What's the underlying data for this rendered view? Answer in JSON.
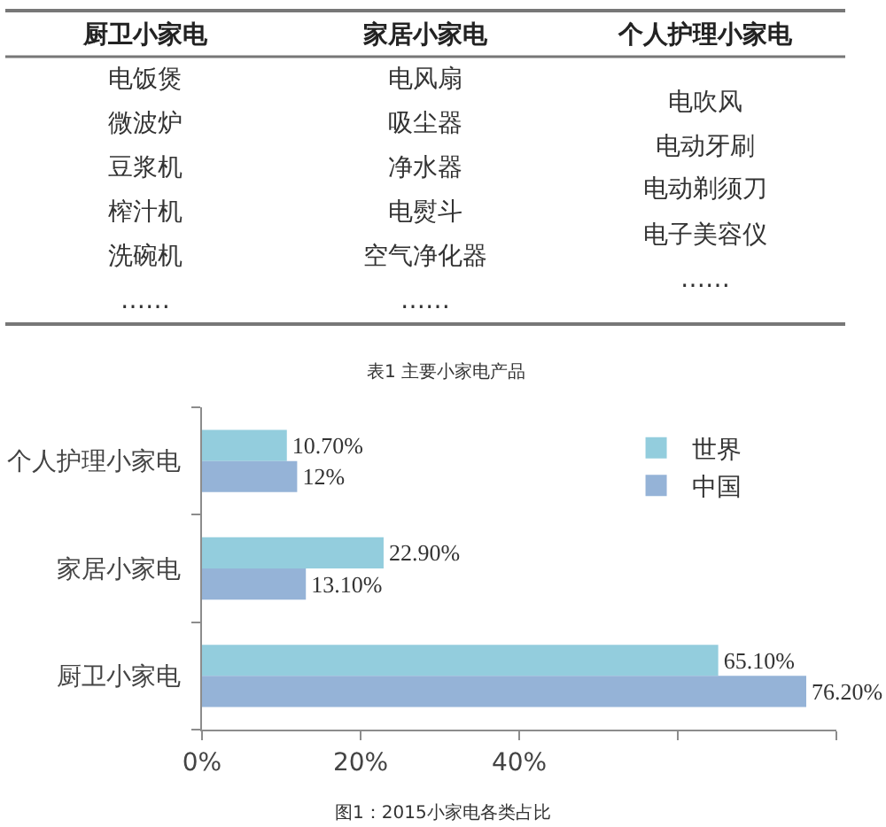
{
  "chart_data": [
    {
      "type": "other",
      "categories": [
        "厨卫小家电",
        "家居小家电",
        "个人护理小家电"
      ],
      "cell_labels": [
        [
          "电饭煲",
          "电风扇",
          "电吹风"
        ],
        [
          "微波炉",
          "吸尘器",
          "电动牙刷"
        ],
        [
          "豆浆机",
          "净水器",
          "电动剃须刀"
        ],
        [
          "榨汁机",
          "电熨斗",
          "电子美容仪"
        ],
        [
          "洗碗机",
          "空气净化器",
          "……"
        ],
        [
          "……",
          "……",
          null
        ]
      ],
      "annotations": [
        "表1 主要小家电产品"
      ]
    },
    {
      "type": "bar",
      "orientation": "horizontal",
      "categories": [
        "个人护理小家电",
        "家居小家电",
        "厨卫小家电"
      ],
      "series": [
        {
          "name": "世界",
          "color": "#93cddd",
          "values": [
            10.7,
            22.9,
            65.1
          ],
          "value_labels": [
            "10.70%",
            "22.90%",
            "65.10%"
          ]
        },
        {
          "name": "中国",
          "color": "#95b3d7",
          "values": [
            12,
            13.1,
            76.2
          ],
          "value_labels": [
            "12%",
            "13.10%",
            "76.20%"
          ]
        }
      ],
      "xlim": [
        0,
        80
      ],
      "xticks": [
        {
          "value": 0,
          "label": "0%"
        },
        {
          "value": 20,
          "label": "20%"
        },
        {
          "value": 40,
          "label": "40%"
        },
        {
          "value": 60,
          "label": null
        },
        {
          "value": 80,
          "label": null
        }
      ],
      "grid": false,
      "legend": "top right",
      "annotations": [
        "图1：2015小家电各类占比"
      ]
    }
  ]
}
